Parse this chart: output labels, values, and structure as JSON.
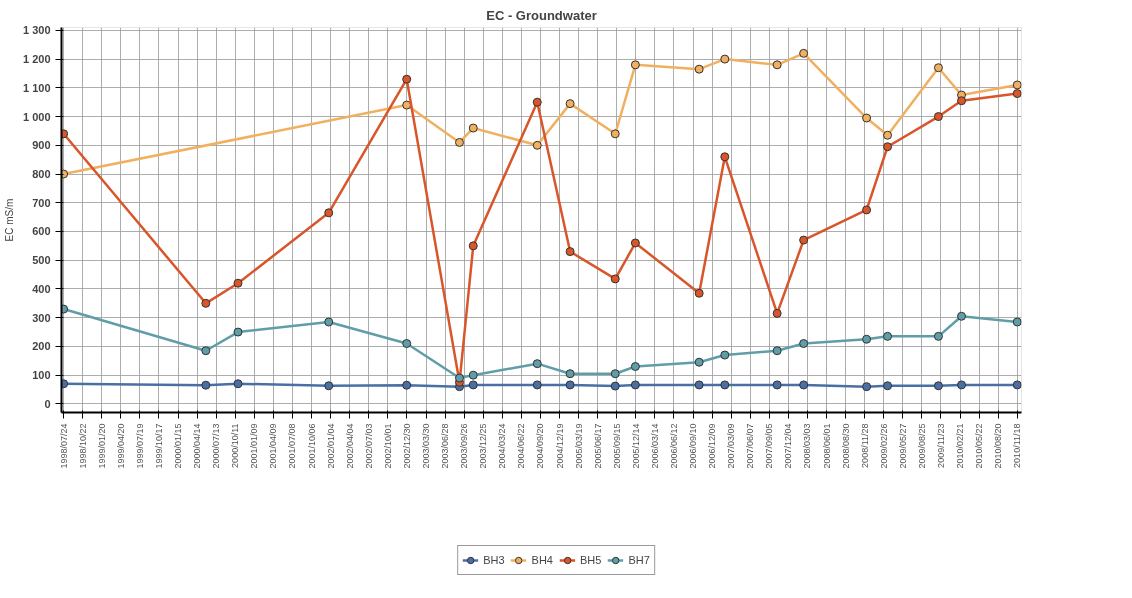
{
  "chart_data": {
    "type": "line",
    "title": "EC - Groundwater",
    "ylabel": "EC mS/m",
    "xlim": [
      "1998-07-14",
      "2010-12-08"
    ],
    "ylim": [
      -30,
      1310
    ],
    "yticks": [
      0,
      100,
      200,
      300,
      400,
      500,
      600,
      700,
      800,
      900,
      {
        "value": 1000,
        "label": "1 000"
      },
      {
        "value": 1100,
        "label": "1 100"
      },
      {
        "value": 1200,
        "label": "1 200"
      },
      {
        "value": 1300,
        "label": "1 300"
      }
    ],
    "xticks": [
      {
        "value": "1998-07-24",
        "label": "1998/07/24"
      },
      {
        "value": "1998-10-22",
        "label": "1998/10/22"
      },
      {
        "value": "1999-01-20",
        "label": "1999/01/20"
      },
      {
        "value": "1999-04-20",
        "label": "1999/04/20"
      },
      {
        "value": "1999-07-19",
        "label": "1999/07/19"
      },
      {
        "value": "1999-10-17",
        "label": "1999/10/17"
      },
      {
        "value": "2000-01-15",
        "label": "2000/01/15"
      },
      {
        "value": "2000-04-14",
        "label": "2000/04/14"
      },
      {
        "value": "2000-07-13",
        "label": "2000/07/13"
      },
      {
        "value": "2000-10-11",
        "label": "2000/10/11"
      },
      {
        "value": "2001-01-09",
        "label": "2001/01/09"
      },
      {
        "value": "2001-04-09",
        "label": "2001/04/09"
      },
      {
        "value": "2001-07-08",
        "label": "2001/07/08"
      },
      {
        "value": "2001-10-06",
        "label": "2001/10/06"
      },
      {
        "value": "2002-01-04",
        "label": "2002/01/04"
      },
      {
        "value": "2002-04-04",
        "label": "2002/04/04"
      },
      {
        "value": "2002-07-03",
        "label": "2002/07/03"
      },
      {
        "value": "2002-10-01",
        "label": "2002/10/01"
      },
      {
        "value": "2002-12-30",
        "label": "2002/12/30"
      },
      {
        "value": "2003-03-30",
        "label": "2003/03/30"
      },
      {
        "value": "2003-06-28",
        "label": "2003/06/28"
      },
      {
        "value": "2003-09-26",
        "label": "2003/09/26"
      },
      {
        "value": "2003-12-25",
        "label": "2003/12/25"
      },
      {
        "value": "2004-03-24",
        "label": "2004/03/24"
      },
      {
        "value": "2004-06-22",
        "label": "2004/06/22"
      },
      {
        "value": "2004-09-20",
        "label": "2004/09/20"
      },
      {
        "value": "2004-12-19",
        "label": "2004/12/19"
      },
      {
        "value": "2005-03-19",
        "label": "2005/03/19"
      },
      {
        "value": "2005-06-17",
        "label": "2005/06/17"
      },
      {
        "value": "2005-09-15",
        "label": "2005/09/15"
      },
      {
        "value": "2005-12-14",
        "label": "2005/12/14"
      },
      {
        "value": "2006-03-14",
        "label": "2006/03/14"
      },
      {
        "value": "2006-06-12",
        "label": "2006/06/12"
      },
      {
        "value": "2006-09-10",
        "label": "2006/09/10"
      },
      {
        "value": "2006-12-09",
        "label": "2006/12/09"
      },
      {
        "value": "2007-03-09",
        "label": "2007/03/09"
      },
      {
        "value": "2007-06-07",
        "label": "2007/06/07"
      },
      {
        "value": "2007-09-05",
        "label": "2007/09/05"
      },
      {
        "value": "2007-12-04",
        "label": "2007/12/04"
      },
      {
        "value": "2008-03-03",
        "label": "2008/03/03"
      },
      {
        "value": "2008-06-01",
        "label": "2008/06/01"
      },
      {
        "value": "2008-08-30",
        "label": "2008/08/30"
      },
      {
        "value": "2008-11-28",
        "label": "2008/11/28"
      },
      {
        "value": "2009-02-26",
        "label": "2009/02/26"
      },
      {
        "value": "2009-05-27",
        "label": "2009/05/27"
      },
      {
        "value": "2009-08-25",
        "label": "2009/08/25"
      },
      {
        "value": "2009-11-23",
        "label": "2009/11/23"
      },
      {
        "value": "2010-02-21",
        "label": "2010/02/21"
      },
      {
        "value": "2010-05-22",
        "label": "2010/05/22"
      },
      {
        "value": "2010-08-20",
        "label": "2010/08/20"
      },
      {
        "value": "2010-11-18",
        "label": "2010/11/18"
      }
    ],
    "grid": true,
    "legend": "bottom",
    "marker": "circle",
    "line_style": "solid",
    "x": [
      "1998-07-24",
      "2000-05-25",
      "2000-10-24",
      "2001-12-26",
      "2002-12-29",
      "2003-09-04",
      "2003-11-08",
      "2004-09-05",
      "2005-02-07",
      "2005-09-08",
      "2005-12-12",
      "2006-10-09",
      "2007-02-07",
      "2007-10-12",
      "2008-02-14",
      "2008-12-07",
      "2009-03-16",
      "2009-11-11",
      "2010-02-28",
      "2010-11-18"
    ],
    "series": [
      {
        "name": "BH3",
        "color": "#4a6fa5",
        "values": [
          70,
          65,
          70,
          63,
          65,
          60,
          66,
          66,
          66,
          62,
          66,
          66,
          66,
          66,
          66,
          60,
          63,
          63,
          66,
          66
        ]
      },
      {
        "name": "BH4",
        "color": "#f0b060",
        "x": [
          "1998-07-24",
          "2002-12-29",
          "2003-09-04",
          "2003-11-08",
          "2004-09-05",
          "2005-02-07",
          "2005-09-08",
          "2005-12-12",
          "2006-10-09",
          "2007-02-07",
          "2007-10-12",
          "2008-02-14",
          "2008-12-07",
          "2009-03-16",
          "2009-11-11",
          "2010-02-28",
          "2010-11-18"
        ],
        "values": [
          800,
          1040,
          910,
          960,
          900,
          1045,
          940,
          1180,
          1165,
          1200,
          1180,
          1220,
          995,
          935,
          1170,
          1075,
          1110
        ]
      },
      {
        "name": "BH5",
        "color": "#d9552a",
        "values": [
          940,
          350,
          420,
          665,
          1130,
          75,
          550,
          1050,
          530,
          435,
          560,
          385,
          860,
          315,
          570,
          675,
          895,
          1000,
          1055,
          1080
        ]
      },
      {
        "name": "BH7",
        "color": "#5f9ea8",
        "values": [
          330,
          185,
          250,
          285,
          210,
          90,
          100,
          140,
          105,
          105,
          130,
          145,
          170,
          185,
          210,
          225,
          235,
          235,
          305,
          285
        ]
      }
    ]
  }
}
